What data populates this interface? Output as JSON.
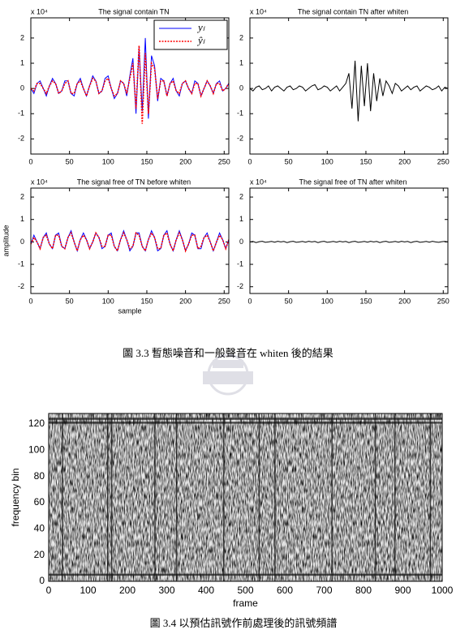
{
  "chart_data": [
    {
      "type": "line",
      "title": "The signal contain TN",
      "scale_label": "x 10⁴",
      "x": [
        0,
        4,
        8,
        12,
        16,
        20,
        24,
        28,
        32,
        36,
        40,
        44,
        48,
        52,
        56,
        60,
        64,
        68,
        72,
        76,
        80,
        84,
        88,
        92,
        96,
        100,
        104,
        108,
        112,
        116,
        120,
        124,
        128,
        132,
        136,
        140,
        144,
        148,
        152,
        156,
        160,
        164,
        168,
        172,
        176,
        180,
        184,
        188,
        192,
        196,
        200,
        204,
        208,
        212,
        216,
        220,
        224,
        228,
        232,
        236,
        240,
        244,
        248,
        252,
        256
      ],
      "series": [
        {
          "name": "yₗ",
          "color": "#0000ff",
          "style": "solid",
          "values": [
            0,
            -0.2,
            0.2,
            0.3,
            0,
            -0.3,
            0.1,
            0.4,
            0.2,
            -0.2,
            -0.1,
            0.3,
            0.3,
            -0.2,
            -0.3,
            0.2,
            0.4,
            0,
            -0.3,
            0.1,
            0.5,
            0.3,
            -0.2,
            -0.1,
            0.4,
            0.5,
            0,
            -0.4,
            -0.2,
            0.3,
            0.2,
            -0.3,
            0.5,
            1.2,
            -1.0,
            1.6,
            -0.9,
            2.0,
            -1.2,
            1.3,
            0.9,
            -0.5,
            0.4,
            0.3,
            -0.3,
            0.2,
            0.4,
            -0.1,
            -0.3,
            0.2,
            0.3,
            0,
            -0.2,
            0.3,
            0.2,
            -0.3,
            0,
            0.3,
            0.1,
            -0.2,
            0.2,
            0.3,
            -0.1,
            0,
            0.2
          ]
        },
        {
          "name": "ŷₗ",
          "color": "#ff0000",
          "style": "dotted",
          "values": [
            0,
            -0.1,
            0.2,
            0.2,
            0,
            -0.2,
            0.1,
            0.3,
            0.2,
            -0.2,
            -0.1,
            0.2,
            0.3,
            -0.2,
            -0.2,
            0.2,
            0.3,
            0,
            -0.3,
            0.1,
            0.4,
            0.3,
            -0.2,
            -0.1,
            0.3,
            0.4,
            0,
            -0.3,
            -0.2,
            0.3,
            0.2,
            -0.2,
            0.4,
            1.0,
            -0.8,
            1.7,
            -1.4,
            1.4,
            -1.0,
            1.0,
            0.8,
            -0.4,
            0.3,
            0.3,
            -0.3,
            0.2,
            0.3,
            -0.1,
            -0.2,
            0.2,
            0.3,
            0,
            -0.2,
            0.2,
            0.2,
            -0.3,
            0,
            0.3,
            0.1,
            -0.2,
            0.2,
            0.2,
            -0.1,
            0,
            0.2
          ]
        }
      ],
      "xlim": [
        0,
        256
      ],
      "xticks": [
        0,
        50,
        100,
        150,
        200,
        250
      ],
      "ylim": [
        -2.6,
        2.8
      ],
      "yticks": [
        -2,
        -1,
        0,
        1,
        2
      ],
      "legend": "upper right"
    },
    {
      "type": "line",
      "title": "The signal contain TN after whiten",
      "scale_label": "x 10⁴",
      "x": [
        0,
        4,
        8,
        12,
        16,
        20,
        24,
        28,
        32,
        36,
        40,
        44,
        48,
        52,
        56,
        60,
        64,
        68,
        72,
        76,
        80,
        84,
        88,
        92,
        96,
        100,
        104,
        108,
        112,
        116,
        120,
        124,
        128,
        132,
        136,
        140,
        144,
        148,
        152,
        156,
        160,
        164,
        168,
        172,
        176,
        180,
        184,
        188,
        192,
        196,
        200,
        204,
        208,
        212,
        216,
        220,
        224,
        228,
        232,
        236,
        240,
        244,
        248,
        252,
        256
      ],
      "series": [
        {
          "color": "#000000",
          "style": "solid",
          "values": [
            0,
            -0.1,
            0.05,
            0.1,
            -0.05,
            0,
            0.1,
            -0.1,
            0.05,
            0.1,
            0,
            -0.1,
            0.05,
            0.1,
            -0.05,
            0,
            0.1,
            0.05,
            -0.1,
            0,
            0.1,
            0.15,
            -0.05,
            0,
            0.1,
            0.05,
            -0.1,
            0,
            0.1,
            -0.1,
            0.05,
            0.2,
            0.6,
            -0.8,
            1.1,
            -1.3,
            0.9,
            -0.7,
            1.0,
            -0.9,
            0.6,
            -0.5,
            0.4,
            -0.3,
            0.3,
            0.1,
            -0.2,
            0.2,
            0.1,
            -0.1,
            0,
            0.1,
            -0.05,
            0.05,
            0.1,
            -0.1,
            0,
            0.1,
            0.05,
            -0.05,
            0,
            0.1,
            -0.1,
            0.05,
            0
          ]
        }
      ],
      "xlim": [
        0,
        256
      ],
      "xticks": [
        0,
        50,
        100,
        150,
        200,
        250
      ],
      "ylim": [
        -2.6,
        2.8
      ],
      "yticks": [
        -2,
        -1,
        0,
        1,
        2
      ]
    },
    {
      "type": "line",
      "title": "The signal free of TN before whiten",
      "scale_label": "x 10⁴",
      "xlabel": "sample",
      "ylabel": "amplitude",
      "x": [
        0,
        4,
        8,
        12,
        16,
        20,
        24,
        28,
        32,
        36,
        40,
        44,
        48,
        52,
        56,
        60,
        64,
        68,
        72,
        76,
        80,
        84,
        88,
        92,
        96,
        100,
        104,
        108,
        112,
        116,
        120,
        124,
        128,
        132,
        136,
        140,
        144,
        148,
        152,
        156,
        160,
        164,
        168,
        172,
        176,
        180,
        184,
        188,
        192,
        196,
        200,
        204,
        208,
        212,
        216,
        220,
        224,
        228,
        232,
        236,
        240,
        244,
        248,
        252,
        256
      ],
      "series": [
        {
          "color": "#0000ff",
          "style": "solid",
          "values": [
            -0.1,
            0.3,
            0,
            -0.3,
            0.2,
            0.4,
            -0.1,
            -0.3,
            0.3,
            0.4,
            -0.2,
            -0.3,
            0.2,
            0.5,
            0,
            -0.4,
            0.1,
            0.4,
            0.1,
            -0.3,
            0,
            0.4,
            0.2,
            -0.3,
            -0.2,
            0.3,
            0.4,
            -0.2,
            -0.4,
            0.1,
            0.5,
            0.1,
            -0.4,
            -0.2,
            0.4,
            0.4,
            -0.2,
            -0.4,
            0.1,
            0.5,
            0.2,
            -0.4,
            -0.3,
            0.3,
            0.5,
            -0.1,
            -0.4,
            0.1,
            0.5,
            0.1,
            -0.4,
            -0.1,
            0.4,
            0.3,
            -0.3,
            -0.3,
            0.2,
            0.4,
            0,
            -0.4,
            0,
            0.4,
            0.1,
            -0.3,
            0.1
          ]
        },
        {
          "color": "#ff0000",
          "style": "dotted",
          "values": [
            -0.1,
            0.2,
            0,
            -0.3,
            0.2,
            0.3,
            -0.1,
            -0.3,
            0.3,
            0.3,
            -0.2,
            -0.3,
            0.2,
            0.4,
            0,
            -0.4,
            0.1,
            0.3,
            0.1,
            -0.3,
            0,
            0.4,
            0.2,
            -0.2,
            -0.2,
            0.3,
            0.3,
            -0.2,
            -0.4,
            0.1,
            0.4,
            0.1,
            -0.3,
            -0.2,
            0.4,
            0.3,
            -0.2,
            -0.4,
            0.1,
            0.4,
            0.2,
            -0.3,
            -0.3,
            0.3,
            0.4,
            -0.1,
            -0.4,
            0.1,
            0.4,
            0.1,
            -0.4,
            -0.1,
            0.3,
            0.3,
            -0.3,
            -0.2,
            0.2,
            0.3,
            0,
            -0.4,
            0,
            0.3,
            0.1,
            -0.3,
            0.1
          ]
        }
      ],
      "xlim": [
        0,
        256
      ],
      "xticks": [
        0,
        50,
        100,
        150,
        200,
        250
      ],
      "ylim": [
        -2.3,
        2.4
      ],
      "yticks": [
        -2,
        -1,
        0,
        1,
        2
      ]
    },
    {
      "type": "line",
      "title": "The signal free of TN after whiten",
      "scale_label": "x 10⁴",
      "x": [
        0,
        4,
        8,
        12,
        16,
        20,
        24,
        28,
        32,
        36,
        40,
        44,
        48,
        52,
        56,
        60,
        64,
        68,
        72,
        76,
        80,
        84,
        88,
        92,
        96,
        100,
        104,
        108,
        112,
        116,
        120,
        124,
        128,
        132,
        136,
        140,
        144,
        148,
        152,
        156,
        160,
        164,
        168,
        172,
        176,
        180,
        184,
        188,
        192,
        196,
        200,
        204,
        208,
        212,
        216,
        220,
        224,
        228,
        232,
        236,
        240,
        244,
        248,
        252,
        256
      ],
      "series": [
        {
          "color": "#000000",
          "style": "solid",
          "values": [
            0,
            0.02,
            -0.03,
            0.01,
            0.03,
            -0.02,
            0,
            0.02,
            -0.01,
            0.03,
            0,
            0.02,
            -0.03,
            0.01,
            0.03,
            -0.02,
            0,
            0.02,
            -0.01,
            0.03,
            0,
            0.02,
            -0.03,
            0.01,
            0.03,
            -0.02,
            0,
            0.02,
            -0.01,
            0.03,
            0,
            0.02,
            -0.03,
            0.01,
            0.03,
            -0.02,
            0,
            0.02,
            -0.01,
            0.03,
            0,
            0.02,
            -0.03,
            0.01,
            0.03,
            -0.02,
            0,
            0.02,
            -0.01,
            0.03,
            0,
            0.02,
            -0.03,
            0.01,
            0.03,
            -0.02,
            0,
            0.02,
            -0.01,
            0.03,
            0,
            -0.02,
            0.01,
            0.02,
            0
          ]
        }
      ],
      "xlim": [
        0,
        256
      ],
      "xticks": [
        0,
        50,
        100,
        150,
        200,
        250
      ],
      "ylim": [
        -2.3,
        2.4
      ],
      "yticks": [
        -2,
        -1,
        0,
        1,
        2
      ]
    },
    {
      "type": "spectrogram",
      "xlabel": "frame",
      "ylabel": "frequency bin",
      "dark_frames": [
        35,
        150,
        160,
        270,
        325,
        445,
        535,
        575,
        720,
        830,
        880,
        970
      ],
      "dark_bins": [
        5,
        121,
        124
      ],
      "xlim": [
        0,
        1000
      ],
      "xticks": [
        0,
        100,
        200,
        300,
        400,
        500,
        600,
        700,
        800,
        900,
        1000
      ],
      "ylim": [
        0,
        128
      ],
      "yticks": [
        0,
        20,
        40,
        60,
        80,
        100,
        120
      ]
    }
  ],
  "captions": [
    "圖 3.3  暫態噪音和一般聲音在 whiten 後的結果",
    "圖 3.4  以預估訊號作前處理後的訊號頻譜"
  ]
}
